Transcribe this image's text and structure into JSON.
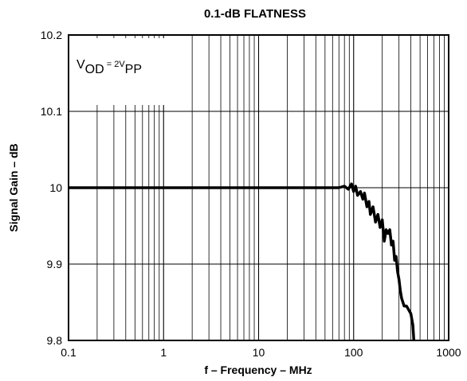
{
  "chart_data": {
    "type": "line",
    "title": "0.1-dB FLATNESS",
    "xlabel": "f – Frequency – MHz",
    "ylabel": "Signal Gain – dB",
    "xscale": "log",
    "xlim": [
      0.1,
      1000
    ],
    "ylim": [
      9.8,
      10.2
    ],
    "xticks": [
      0.1,
      1,
      10,
      100,
      1000
    ],
    "xtick_labels": [
      "0.1",
      "1",
      "10",
      "100",
      "1000"
    ],
    "yticks": [
      9.8,
      9.9,
      10,
      10.1,
      10.2
    ],
    "ytick_labels": [
      "9.8",
      "9.9",
      "10",
      "10.1",
      "10.2"
    ],
    "grid": true,
    "annotation": {
      "v": "V",
      "sub1": "OD",
      "mid": " = 2V",
      "sub2": "PP"
    },
    "series": [
      {
        "x": [
          0.1,
          1,
          10,
          50,
          70,
          80,
          88,
          95,
          100,
          105,
          110,
          118,
          125,
          130,
          138,
          145,
          150,
          160,
          170,
          180,
          190,
          200,
          210,
          220,
          230,
          240,
          250,
          260,
          270,
          280,
          290,
          300,
          310,
          320,
          330,
          340,
          360,
          380,
          400,
          420,
          430
        ],
        "y": [
          10.0,
          10.0,
          10.0,
          10.0,
          10.0,
          10.002,
          9.998,
          10.005,
          9.995,
          10.002,
          9.99,
          9.995,
          9.985,
          9.993,
          9.975,
          9.982,
          9.965,
          9.975,
          9.955,
          9.965,
          9.948,
          9.958,
          9.93,
          9.945,
          9.94,
          9.945,
          9.925,
          9.93,
          9.905,
          9.91,
          9.89,
          9.88,
          9.865,
          9.855,
          9.85,
          9.845,
          9.845,
          9.84,
          9.835,
          9.82,
          9.8
        ]
      }
    ]
  }
}
